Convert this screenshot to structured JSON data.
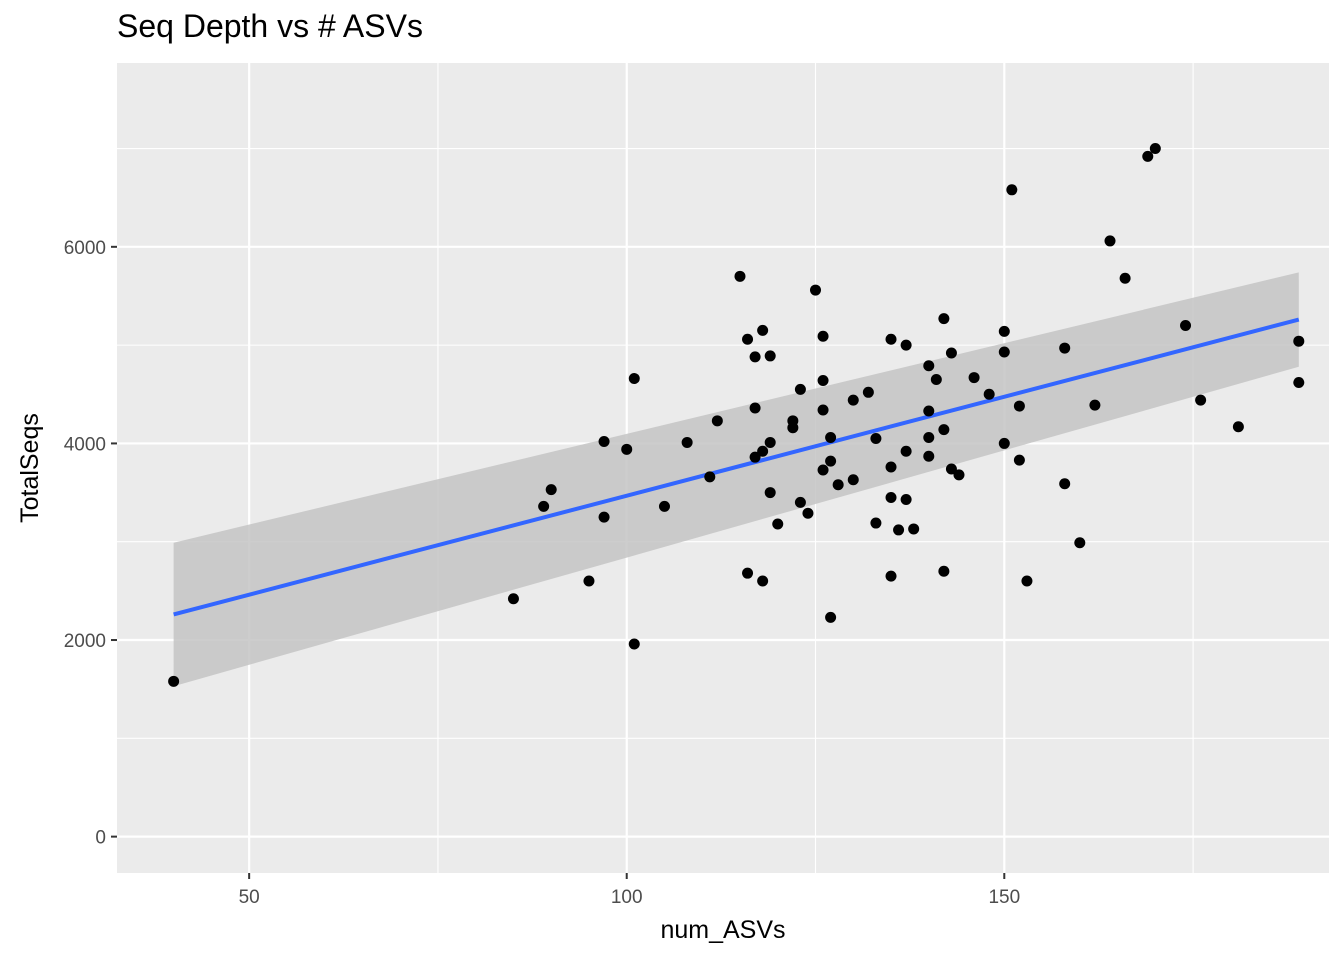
{
  "chart_data": {
    "type": "scatter",
    "title": "Seq Depth vs # ASVs",
    "xlabel": "num_ASVs",
    "ylabel": "TotalSeqs",
    "xlim": [
      32.5,
      193
    ],
    "ylim": [
      -370,
      7870
    ],
    "x_ticks": [
      50,
      100,
      150
    ],
    "y_ticks": [
      0,
      2000,
      4000,
      6000
    ],
    "x_tick_labels": [
      "50",
      "100",
      "150"
    ],
    "y_tick_labels": [
      "0",
      "2000",
      "4000",
      "6000"
    ],
    "grid": true,
    "legend": "none",
    "colors": {
      "panel": "#ebebeb",
      "grid": "#ffffff",
      "points": "#000000",
      "fit_line": "#3366ff",
      "ribbon": "#c4c4c4"
    },
    "points": [
      [
        40,
        1580
      ],
      [
        85,
        2420
      ],
      [
        89,
        3360
      ],
      [
        90,
        3530
      ],
      [
        95,
        2600
      ],
      [
        97,
        4020
      ],
      [
        97,
        3250
      ],
      [
        100,
        3940
      ],
      [
        101,
        4660
      ],
      [
        101,
        1960
      ],
      [
        105,
        3360
      ],
      [
        108,
        4010
      ],
      [
        111,
        3660
      ],
      [
        112,
        4230
      ],
      [
        115,
        5700
      ],
      [
        116,
        5060
      ],
      [
        116,
        2680
      ],
      [
        117,
        4880
      ],
      [
        117,
        4360
      ],
      [
        117,
        3860
      ],
      [
        118,
        5150
      ],
      [
        118,
        3920
      ],
      [
        118,
        2600
      ],
      [
        119,
        4890
      ],
      [
        119,
        4010
      ],
      [
        119,
        3500
      ],
      [
        120,
        3180
      ],
      [
        122,
        4230
      ],
      [
        122,
        4160
      ],
      [
        123,
        4550
      ],
      [
        123,
        3400
      ],
      [
        124,
        3290
      ],
      [
        125,
        5560
      ],
      [
        126,
        5090
      ],
      [
        126,
        4640
      ],
      [
        126,
        4340
      ],
      [
        126,
        3730
      ],
      [
        127,
        4060
      ],
      [
        127,
        3820
      ],
      [
        127,
        2230
      ],
      [
        128,
        3580
      ],
      [
        130,
        4440
      ],
      [
        130,
        3630
      ],
      [
        132,
        4520
      ],
      [
        133,
        4050
      ],
      [
        133,
        3190
      ],
      [
        135,
        5060
      ],
      [
        135,
        3760
      ],
      [
        135,
        3450
      ],
      [
        135,
        2650
      ],
      [
        136,
        3120
      ],
      [
        137,
        5000
      ],
      [
        137,
        3920
      ],
      [
        137,
        3430
      ],
      [
        138,
        3130
      ],
      [
        140,
        4790
      ],
      [
        140,
        4330
      ],
      [
        140,
        4060
      ],
      [
        140,
        3870
      ],
      [
        141,
        4650
      ],
      [
        142,
        5270
      ],
      [
        142,
        4140
      ],
      [
        142,
        2700
      ],
      [
        143,
        4920
      ],
      [
        143,
        3740
      ],
      [
        144,
        3680
      ],
      [
        146,
        4670
      ],
      [
        148,
        4500
      ],
      [
        150,
        5140
      ],
      [
        150,
        4930
      ],
      [
        150,
        4000
      ],
      [
        151,
        6580
      ],
      [
        152,
        4380
      ],
      [
        152,
        3830
      ],
      [
        153,
        2600
      ],
      [
        158,
        4970
      ],
      [
        158,
        3590
      ],
      [
        160,
        2990
      ],
      [
        162,
        4390
      ],
      [
        164,
        6060
      ],
      [
        166,
        5680
      ],
      [
        169,
        6920
      ],
      [
        170,
        7000
      ],
      [
        174,
        5200
      ],
      [
        176,
        4440
      ],
      [
        181,
        4170
      ],
      [
        189,
        5040
      ],
      [
        189,
        4620
      ]
    ],
    "fit_line": {
      "x": [
        40,
        189
      ],
      "y": [
        2260,
        5260
      ]
    },
    "confidence_band": {
      "x": [
        40,
        189
      ],
      "upper": [
        2990,
        5740
      ],
      "lower": [
        1530,
        4780
      ]
    }
  }
}
